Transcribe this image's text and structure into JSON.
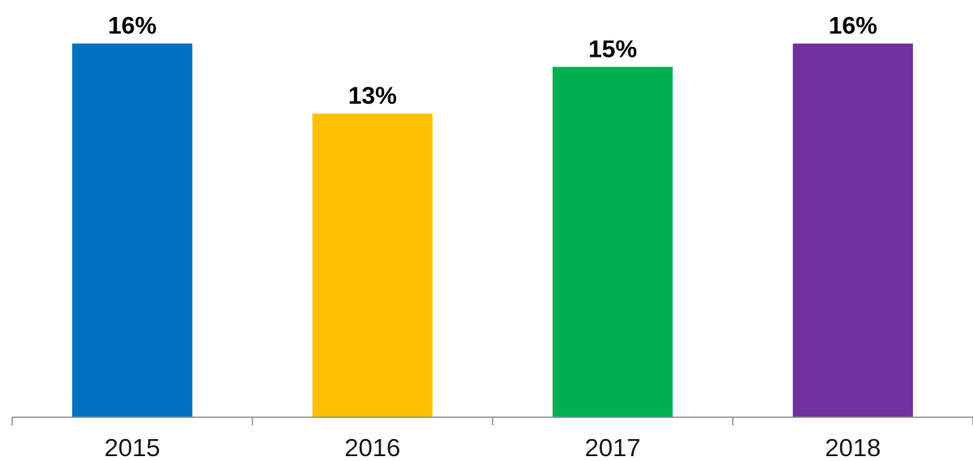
{
  "chart_data": {
    "type": "bar",
    "categories": [
      "2015",
      "2016",
      "2017",
      "2018"
    ],
    "values": [
      16,
      13,
      15,
      16
    ],
    "data_labels": [
      "16%",
      "13%",
      "15%",
      "16%"
    ],
    "colors": [
      "#0070c0",
      "#ffc000",
      "#00b050",
      "#7030a0"
    ],
    "ylim": [
      0,
      17.1
    ],
    "title": "",
    "xlabel": "",
    "ylabel": "",
    "grid": false,
    "legend": "none"
  }
}
